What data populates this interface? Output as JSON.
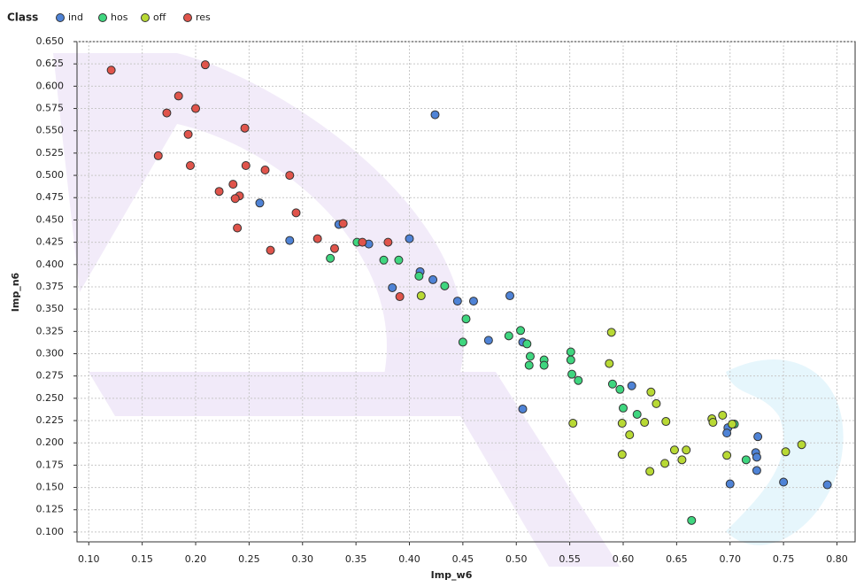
{
  "chart_data": {
    "type": "scatter",
    "x_label": "Imp_w6",
    "y_label": "Imp_n6",
    "legend_title": "Class",
    "xlim": [
      0.089,
      0.817
    ],
    "ylim": [
      0.089,
      0.65
    ],
    "grid": true,
    "xticks": [
      {
        "value": 0.1,
        "label": "0.10"
      },
      {
        "value": 0.15,
        "label": "0.15"
      },
      {
        "value": 0.2,
        "label": "0.20"
      },
      {
        "value": 0.25,
        "label": "0.25"
      },
      {
        "value": 0.3,
        "label": "0.30"
      },
      {
        "value": 0.35,
        "label": "0.35"
      },
      {
        "value": 0.4,
        "label": "0.40"
      },
      {
        "value": 0.45,
        "label": "0.45"
      },
      {
        "value": 0.5,
        "label": "0.50"
      },
      {
        "value": 0.55,
        "label": "0.55"
      },
      {
        "value": 0.6,
        "label": "0.60"
      },
      {
        "value": 0.65,
        "label": "0.65"
      },
      {
        "value": 0.7,
        "label": "0.70"
      },
      {
        "value": 0.75,
        "label": "0.75"
      },
      {
        "value": 0.8,
        "label": "0.80"
      }
    ],
    "yticks": [
      {
        "value": 0.1,
        "label": "0.100"
      },
      {
        "value": 0.125,
        "label": "0.125"
      },
      {
        "value": 0.15,
        "label": "0.150"
      },
      {
        "value": 0.175,
        "label": "0.175"
      },
      {
        "value": 0.2,
        "label": "0.200"
      },
      {
        "value": 0.225,
        "label": "0.225"
      },
      {
        "value": 0.25,
        "label": "0.250"
      },
      {
        "value": 0.275,
        "label": "0.275"
      },
      {
        "value": 0.3,
        "label": "0.300"
      },
      {
        "value": 0.325,
        "label": "0.325"
      },
      {
        "value": 0.35,
        "label": "0.350"
      },
      {
        "value": 0.375,
        "label": "0.375"
      },
      {
        "value": 0.4,
        "label": "0.400"
      },
      {
        "value": 0.425,
        "label": "0.425"
      },
      {
        "value": 0.45,
        "label": "0.450"
      },
      {
        "value": 0.475,
        "label": "0.475"
      },
      {
        "value": 0.5,
        "label": "0.500"
      },
      {
        "value": 0.525,
        "label": "0.525"
      },
      {
        "value": 0.55,
        "label": "0.550"
      },
      {
        "value": 0.575,
        "label": "0.575"
      },
      {
        "value": 0.6,
        "label": "0.600"
      },
      {
        "value": 0.625,
        "label": "0.625"
      },
      {
        "value": 0.65,
        "label": "0.650"
      }
    ],
    "series": [
      {
        "name": "ind",
        "color": "#4f83d6",
        "x": [
          0.424,
          0.26,
          0.334,
          0.362,
          0.4,
          0.288,
          0.41,
          0.384,
          0.422,
          0.445,
          0.46,
          0.494,
          0.474,
          0.506,
          0.506,
          0.608,
          0.698,
          0.697,
          0.726,
          0.724,
          0.725,
          0.725,
          0.7,
          0.75,
          0.791
        ],
        "values": [
          0.568,
          0.469,
          0.445,
          0.423,
          0.429,
          0.427,
          0.392,
          0.374,
          0.383,
          0.359,
          0.359,
          0.365,
          0.315,
          0.313,
          0.238,
          0.264,
          0.217,
          0.211,
          0.207,
          0.189,
          0.184,
          0.169,
          0.154,
          0.156,
          0.153
        ]
      },
      {
        "name": "hos",
        "color": "#3fd67f",
        "x": [
          0.351,
          0.326,
          0.376,
          0.39,
          0.409,
          0.433,
          0.453,
          0.45,
          0.493,
          0.504,
          0.51,
          0.513,
          0.512,
          0.526,
          0.526,
          0.551,
          0.551,
          0.552,
          0.558,
          0.59,
          0.597,
          0.6,
          0.613,
          0.664,
          0.704,
          0.715
        ],
        "values": [
          0.425,
          0.407,
          0.405,
          0.405,
          0.387,
          0.376,
          0.339,
          0.313,
          0.32,
          0.326,
          0.311,
          0.297,
          0.287,
          0.293,
          0.287,
          0.302,
          0.293,
          0.277,
          0.27,
          0.266,
          0.26,
          0.239,
          0.232,
          0.113,
          0.221,
          0.181
        ]
      },
      {
        "name": "off",
        "color": "#b8d934",
        "x": [
          0.411,
          0.589,
          0.587,
          0.553,
          0.626,
          0.631,
          0.64,
          0.62,
          0.599,
          0.606,
          0.599,
          0.625,
          0.648,
          0.659,
          0.655,
          0.639,
          0.683,
          0.684,
          0.693,
          0.697,
          0.702,
          0.752,
          0.767
        ],
        "values": [
          0.365,
          0.324,
          0.289,
          0.222,
          0.257,
          0.244,
          0.224,
          0.223,
          0.222,
          0.209,
          0.187,
          0.168,
          0.192,
          0.192,
          0.181,
          0.177,
          0.227,
          0.223,
          0.231,
          0.186,
          0.221,
          0.19,
          0.198
        ]
      },
      {
        "name": "res",
        "color": "#e0544b",
        "x": [
          0.121,
          0.209,
          0.184,
          0.173,
          0.2,
          0.193,
          0.246,
          0.165,
          0.195,
          0.247,
          0.265,
          0.288,
          0.222,
          0.235,
          0.241,
          0.237,
          0.294,
          0.239,
          0.314,
          0.27,
          0.338,
          0.33,
          0.356,
          0.38,
          0.391
        ],
        "values": [
          0.618,
          0.624,
          0.589,
          0.57,
          0.575,
          0.546,
          0.553,
          0.522,
          0.511,
          0.511,
          0.506,
          0.5,
          0.482,
          0.49,
          0.477,
          0.474,
          0.458,
          0.441,
          0.429,
          0.416,
          0.446,
          0.418,
          0.425,
          0.425,
          0.364
        ]
      }
    ]
  }
}
